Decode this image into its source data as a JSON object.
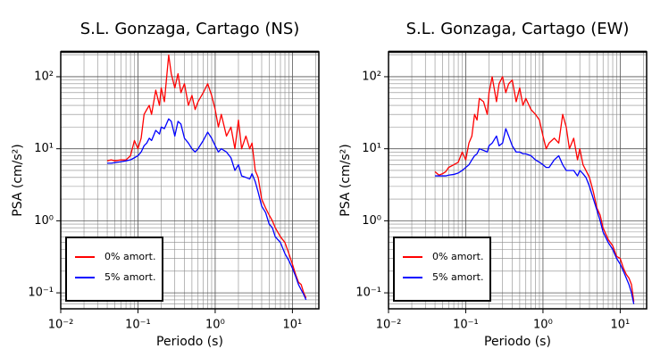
{
  "chart_data": [
    {
      "type": "line",
      "title": "S.L. Gonzaga, Cartago (NS)",
      "xlabel": "Periodo (s)",
      "ylabel": "PSA (cm/s²)",
      "xscale": "log",
      "yscale": "log",
      "grid": true,
      "legend": "lower left",
      "xlim": [
        0.01,
        22
      ],
      "ylim": [
        0.06,
        222
      ],
      "xticks": [
        {
          "value": 0.01,
          "label": "10⁻²"
        },
        {
          "value": 0.1,
          "label": "10⁻¹"
        },
        {
          "value": 1,
          "label": "10⁰"
        },
        {
          "value": 10,
          "label": "10¹"
        }
      ],
      "yticks": [
        {
          "value": 0.1,
          "label": "10⁻¹"
        },
        {
          "value": 1,
          "label": "10⁰"
        },
        {
          "value": 10,
          "label": "10¹"
        },
        {
          "value": 100,
          "label": "10²"
        }
      ],
      "xminorticks": [
        0.02,
        0.03,
        0.04,
        0.05,
        0.06,
        0.07,
        0.08,
        0.09,
        0.2,
        0.3,
        0.4,
        0.5,
        0.6,
        0.7,
        0.8,
        0.9,
        2,
        3,
        4,
        5,
        6,
        7,
        8,
        9,
        20
      ],
      "yminorticks": [
        0.07,
        0.08,
        0.09,
        0.2,
        0.3,
        0.4,
        0.5,
        0.6,
        0.7,
        0.8,
        0.9,
        2,
        3,
        4,
        5,
        6,
        7,
        8,
        9,
        20,
        30,
        40,
        50,
        60,
        70,
        80,
        90,
        200
      ],
      "x": [
        0.04,
        0.045,
        0.05,
        0.055,
        0.06,
        0.07,
        0.08,
        0.09,
        0.1,
        0.11,
        0.12,
        0.13,
        0.14,
        0.15,
        0.17,
        0.19,
        0.2,
        0.22,
        0.25,
        0.27,
        0.3,
        0.33,
        0.36,
        0.4,
        0.45,
        0.5,
        0.55,
        0.6,
        0.7,
        0.8,
        0.9,
        1.0,
        1.1,
        1.2,
        1.4,
        1.6,
        1.8,
        2.0,
        2.2,
        2.5,
        2.8,
        3,
        3.3,
        3.6,
        4,
        4.5,
        5,
        5.5,
        6,
        7,
        8,
        9,
        10,
        11,
        12,
        13,
        14,
        15
      ],
      "series": [
        {
          "name": "0% amort.",
          "color": "#ff0000",
          "values": [
            6.8,
            7,
            6.8,
            6.9,
            7,
            7,
            8,
            13,
            10,
            14,
            30,
            35,
            40,
            30,
            65,
            40,
            70,
            45,
            200,
            110,
            70,
            110,
            60,
            80,
            40,
            55,
            35,
            45,
            60,
            80,
            55,
            35,
            20,
            30,
            15,
            20,
            10,
            25,
            10,
            15,
            10,
            12,
            5,
            4,
            2,
            1.5,
            1.2,
            1.0,
            0.8,
            0.6,
            0.5,
            0.35,
            0.25,
            0.18,
            0.14,
            0.13,
            0.1,
            0.085
          ]
        },
        {
          "name": "5% amort.",
          "color": "#0000ff",
          "values": [
            6.3,
            6.3,
            6.4,
            6.5,
            6.6,
            6.8,
            7,
            7.5,
            8,
            9,
            11,
            12,
            14,
            13,
            18,
            16,
            20,
            19,
            26,
            24,
            15,
            24,
            22,
            14,
            12,
            10,
            9,
            10,
            13,
            17,
            14,
            11,
            9,
            10,
            9,
            7.5,
            5,
            6,
            4.2,
            4,
            3.8,
            4.5,
            3.5,
            2.5,
            1.6,
            1.3,
            0.9,
            0.8,
            0.6,
            0.5,
            0.35,
            0.28,
            0.22,
            0.17,
            0.13,
            0.11,
            0.095,
            0.08
          ]
        }
      ]
    },
    {
      "type": "line",
      "title": "S.L. Gonzaga, Cartago (EW)",
      "xlabel": "Periodo (s)",
      "ylabel": "PSA (cm/s²)",
      "xscale": "log",
      "yscale": "log",
      "grid": true,
      "legend": "lower left",
      "xlim": [
        0.01,
        22
      ],
      "ylim": [
        0.06,
        222
      ],
      "xticks": [
        {
          "value": 0.01,
          "label": "10⁻²"
        },
        {
          "value": 0.1,
          "label": "10⁻¹"
        },
        {
          "value": 1,
          "label": "10⁰"
        },
        {
          "value": 10,
          "label": "10¹"
        }
      ],
      "yticks": [
        {
          "value": 0.1,
          "label": "10⁻¹"
        },
        {
          "value": 1,
          "label": "10⁰"
        },
        {
          "value": 10,
          "label": "10¹"
        },
        {
          "value": 100,
          "label": "10²"
        }
      ],
      "xminorticks": [
        0.02,
        0.03,
        0.04,
        0.05,
        0.06,
        0.07,
        0.08,
        0.09,
        0.2,
        0.3,
        0.4,
        0.5,
        0.6,
        0.7,
        0.8,
        0.9,
        2,
        3,
        4,
        5,
        6,
        7,
        8,
        9,
        20
      ],
      "yminorticks": [
        0.07,
        0.08,
        0.09,
        0.2,
        0.3,
        0.4,
        0.5,
        0.6,
        0.7,
        0.8,
        0.9,
        2,
        3,
        4,
        5,
        6,
        7,
        8,
        9,
        20,
        30,
        40,
        50,
        60,
        70,
        80,
        90,
        200
      ],
      "x": [
        0.04,
        0.045,
        0.05,
        0.055,
        0.06,
        0.07,
        0.08,
        0.09,
        0.1,
        0.11,
        0.12,
        0.13,
        0.14,
        0.15,
        0.17,
        0.19,
        0.2,
        0.22,
        0.25,
        0.27,
        0.3,
        0.33,
        0.36,
        0.4,
        0.45,
        0.5,
        0.55,
        0.6,
        0.7,
        0.8,
        0.9,
        1.0,
        1.1,
        1.2,
        1.4,
        1.6,
        1.8,
        2.0,
        2.2,
        2.5,
        2.8,
        3,
        3.3,
        3.6,
        4,
        4.5,
        5,
        5.5,
        6,
        7,
        8,
        9,
        10,
        11,
        12,
        13,
        14,
        15
      ],
      "series": [
        {
          "name": "0% amort.",
          "color": "#ff0000",
          "values": [
            4.8,
            4.3,
            4.5,
            4.8,
            5.5,
            6,
            6.5,
            9,
            7,
            12,
            15,
            30,
            25,
            50,
            45,
            30,
            60,
            100,
            45,
            80,
            100,
            60,
            80,
            90,
            45,
            70,
            40,
            50,
            35,
            30,
            25,
            15,
            10,
            12,
            14,
            12,
            30,
            20,
            10,
            14,
            7,
            10,
            6,
            5,
            4,
            2.5,
            1.5,
            1.2,
            0.8,
            0.55,
            0.45,
            0.32,
            0.3,
            0.22,
            0.18,
            0.16,
            0.13,
            0.075
          ]
        },
        {
          "name": "5% amort.",
          "color": "#0000ff",
          "values": [
            4.2,
            4.2,
            4.2,
            4.2,
            4.3,
            4.4,
            4.6,
            5,
            5.5,
            6,
            7,
            8,
            8.5,
            10,
            9.5,
            9,
            11,
            12,
            15,
            11,
            12,
            19,
            15,
            11,
            9,
            9,
            8.5,
            8.5,
            8,
            7,
            6.5,
            6,
            5.5,
            5.5,
            7,
            8,
            6,
            5,
            5,
            5,
            4.2,
            5,
            4.5,
            4,
            3,
            2,
            1.4,
            1,
            0.7,
            0.5,
            0.4,
            0.3,
            0.25,
            0.2,
            0.16,
            0.13,
            0.1,
            0.07
          ]
        }
      ]
    }
  ]
}
